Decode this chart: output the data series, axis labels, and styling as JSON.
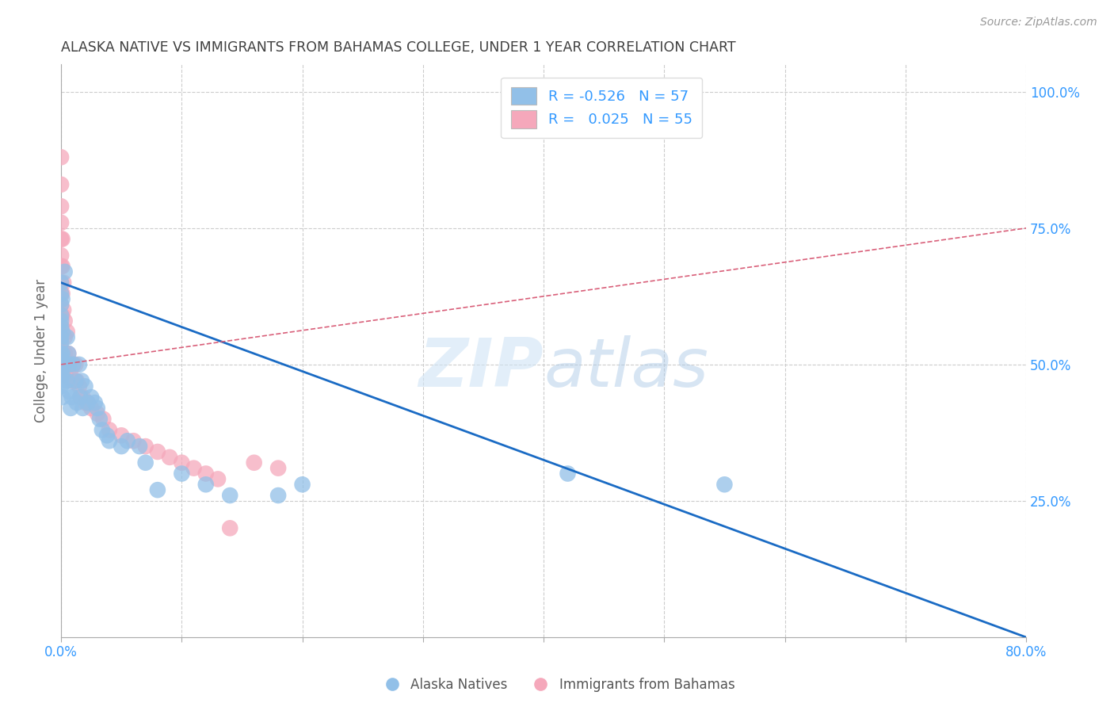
{
  "title": "ALASKA NATIVE VS IMMIGRANTS FROM BAHAMAS COLLEGE, UNDER 1 YEAR CORRELATION CHART",
  "source": "Source: ZipAtlas.com",
  "ylabel": "College, Under 1 year",
  "xlim": [
    0,
    0.8
  ],
  "ylim": [
    0,
    1.05
  ],
  "r_blue": -0.526,
  "n_blue": 57,
  "r_pink": 0.025,
  "n_pink": 55,
  "legend_label_blue": "Alaska Natives",
  "legend_label_pink": "Immigrants from Bahamas",
  "blue_color": "#92C0E8",
  "pink_color": "#F5A8BB",
  "blue_line_color": "#1A6BC4",
  "pink_line_color": "#D9607A",
  "background_color": "#FFFFFF",
  "grid_color": "#CCCCCC",
  "watermark_zip": "ZIP",
  "watermark_atlas": "atlas",
  "title_color": "#404040",
  "blue_scatter_x": [
    0.0,
    0.0,
    0.0,
    0.0,
    0.0,
    0.0,
    0.0,
    0.0,
    0.0,
    0.0,
    0.0,
    0.0,
    0.0,
    0.0,
    0.0,
    0.001,
    0.001,
    0.001,
    0.001,
    0.001,
    0.003,
    0.003,
    0.005,
    0.005,
    0.006,
    0.007,
    0.007,
    0.008,
    0.009,
    0.01,
    0.012,
    0.013,
    0.015,
    0.016,
    0.017,
    0.018,
    0.02,
    0.022,
    0.025,
    0.028,
    0.03,
    0.032,
    0.034,
    0.038,
    0.04,
    0.05,
    0.055,
    0.065,
    0.07,
    0.08,
    0.1,
    0.12,
    0.14,
    0.18,
    0.2,
    0.42,
    0.55
  ],
  "blue_scatter_y": [
    0.65,
    0.63,
    0.61,
    0.59,
    0.57,
    0.55,
    0.54,
    0.52,
    0.51,
    0.5,
    0.49,
    0.48,
    0.47,
    0.46,
    0.58,
    0.62,
    0.56,
    0.52,
    0.48,
    0.44,
    0.67,
    0.5,
    0.55,
    0.47,
    0.52,
    0.5,
    0.45,
    0.42,
    0.44,
    0.5,
    0.47,
    0.43,
    0.5,
    0.44,
    0.47,
    0.42,
    0.46,
    0.43,
    0.44,
    0.43,
    0.42,
    0.4,
    0.38,
    0.37,
    0.36,
    0.35,
    0.36,
    0.35,
    0.32,
    0.27,
    0.3,
    0.28,
    0.26,
    0.26,
    0.28,
    0.3,
    0.28
  ],
  "pink_scatter_x": [
    0.0,
    0.0,
    0.0,
    0.0,
    0.0,
    0.0,
    0.0,
    0.0,
    0.0,
    0.0,
    0.0,
    0.0,
    0.0,
    0.0,
    0.0,
    0.001,
    0.001,
    0.001,
    0.001,
    0.002,
    0.002,
    0.003,
    0.003,
    0.003,
    0.004,
    0.004,
    0.005,
    0.006,
    0.007,
    0.008,
    0.009,
    0.01,
    0.012,
    0.013,
    0.015,
    0.016,
    0.018,
    0.02,
    0.022,
    0.025,
    0.03,
    0.035,
    0.04,
    0.05,
    0.06,
    0.07,
    0.08,
    0.09,
    0.1,
    0.11,
    0.12,
    0.13,
    0.14,
    0.16,
    0.18
  ],
  "pink_scatter_y": [
    0.88,
    0.83,
    0.79,
    0.76,
    0.73,
    0.7,
    0.68,
    0.65,
    0.63,
    0.61,
    0.59,
    0.57,
    0.55,
    0.53,
    0.51,
    0.73,
    0.68,
    0.63,
    0.59,
    0.65,
    0.6,
    0.58,
    0.55,
    0.52,
    0.5,
    0.48,
    0.56,
    0.52,
    0.5,
    0.49,
    0.47,
    0.5,
    0.5,
    0.47,
    0.46,
    0.44,
    0.44,
    0.43,
    0.43,
    0.42,
    0.41,
    0.4,
    0.38,
    0.37,
    0.36,
    0.35,
    0.34,
    0.33,
    0.32,
    0.31,
    0.3,
    0.29,
    0.2,
    0.32,
    0.31
  ],
  "blue_line_x0": 0.0,
  "blue_line_x1": 0.8,
  "blue_line_y0": 0.65,
  "blue_line_y1": 0.0,
  "pink_line_x0": 0.0,
  "pink_line_x1": 0.8,
  "pink_line_y0": 0.5,
  "pink_line_y1": 0.75
}
